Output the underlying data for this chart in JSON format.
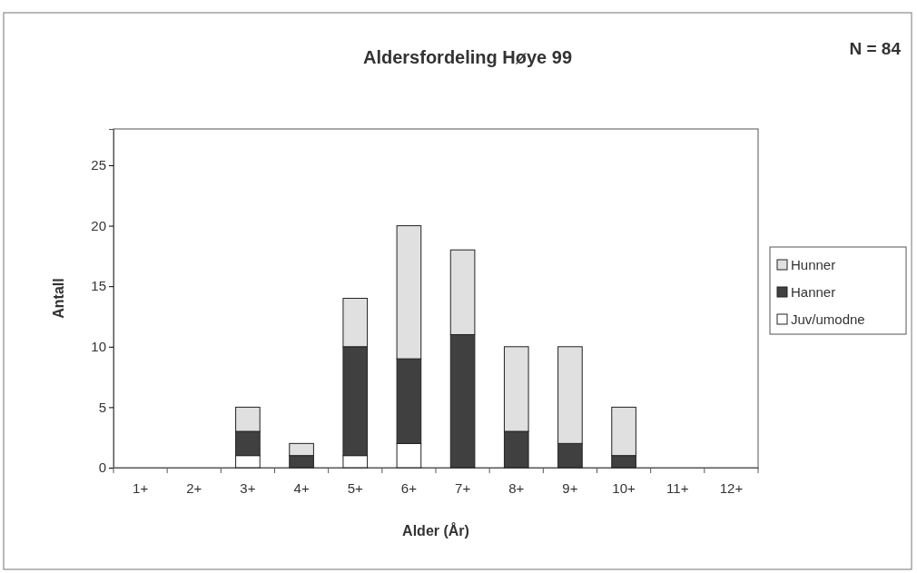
{
  "chart_data": {
    "type": "bar",
    "title": "Aldersfordeling Høye 99",
    "xlabel": "Alder (År)",
    "ylabel": "Antall",
    "annotations": [
      "N = 84"
    ],
    "categories": [
      "1+",
      "2+",
      "3+",
      "4+",
      "5+",
      "6+",
      "7+",
      "8+",
      "9+",
      "10+",
      "11+",
      "12+"
    ],
    "stacked": true,
    "legend": "right",
    "grid": false,
    "series": [
      {
        "name": "Juv/umodne",
        "color": "#ffffff",
        "values": [
          0,
          0,
          1,
          0,
          1,
          2,
          0,
          0,
          0,
          0,
          0,
          0
        ]
      },
      {
        "name": "Hanner",
        "color": "#404040",
        "values": [
          0,
          0,
          2,
          1,
          9,
          7,
          11,
          3,
          2,
          1,
          0,
          0
        ]
      },
      {
        "name": "Hunner",
        "color": "#e0e0e0",
        "values": [
          0,
          0,
          2,
          1,
          4,
          11,
          7,
          7,
          8,
          4,
          0,
          0
        ]
      }
    ],
    "ylim": [
      0,
      28
    ],
    "yticks": [
      0,
      5,
      10,
      15,
      20,
      25
    ]
  }
}
